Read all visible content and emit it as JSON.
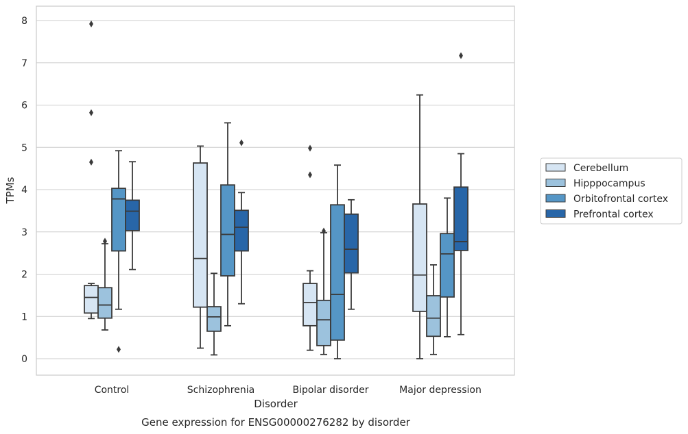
{
  "chart_data": {
    "type": "box",
    "caption": "Gene expression for ENSG00000276282 by disorder",
    "xlabel": "Disorder",
    "ylabel": "TPMs",
    "ylim": [
      -0.4,
      8.35
    ],
    "yticks": [
      0,
      1,
      2,
      3,
      4,
      5,
      6,
      7,
      8
    ],
    "ytick_labels": [
      "0",
      "1",
      "2",
      "3",
      "4",
      "5",
      "6",
      "7",
      "8"
    ],
    "grid": "horizontal",
    "legend_position": "right",
    "categories": [
      "Control",
      "Schizophrenia",
      "Bipolar disorder",
      "Major depression"
    ],
    "series": [
      {
        "name": "Cerebellum",
        "color": "#d6e5f3",
        "boxes": [
          {
            "whisker_low": 0.95,
            "q1": 1.08,
            "median": 1.45,
            "q3": 1.73,
            "whisker_high": 1.78,
            "outliers": [
              7.92,
              5.82,
              4.65
            ]
          },
          {
            "whisker_low": 0.25,
            "q1": 1.22,
            "median": 2.37,
            "q3": 4.63,
            "whisker_high": 5.03,
            "outliers": []
          },
          {
            "whisker_low": 0.2,
            "q1": 0.78,
            "median": 1.33,
            "q3": 1.78,
            "whisker_high": 2.08,
            "outliers": [
              4.98,
              4.35
            ]
          },
          {
            "whisker_low": 0.0,
            "q1": 1.12,
            "median": 1.98,
            "q3": 3.66,
            "whisker_high": 6.24,
            "outliers": []
          }
        ]
      },
      {
        "name": "Hipppocampus",
        "color": "#9cc2dd",
        "boxes": [
          {
            "whisker_low": 0.68,
            "q1": 0.96,
            "median": 1.27,
            "q3": 1.68,
            "whisker_high": 2.72,
            "outliers": [
              2.78
            ]
          },
          {
            "whisker_low": 0.09,
            "q1": 0.65,
            "median": 0.99,
            "q3": 1.23,
            "whisker_high": 2.02,
            "outliers": []
          },
          {
            "whisker_low": 0.1,
            "q1": 0.31,
            "median": 0.92,
            "q3": 1.38,
            "whisker_high": 2.98,
            "outliers": [
              3.02
            ]
          },
          {
            "whisker_low": 0.1,
            "q1": 0.53,
            "median": 0.96,
            "q3": 1.49,
            "whisker_high": 2.22,
            "outliers": []
          }
        ]
      },
      {
        "name": "Orbitofrontal cortex",
        "color": "#5596c6",
        "boxes": [
          {
            "whisker_low": 1.17,
            "q1": 2.55,
            "median": 3.78,
            "q3": 4.03,
            "whisker_high": 4.92,
            "outliers": [
              0.22
            ]
          },
          {
            "whisker_low": 0.78,
            "q1": 1.96,
            "median": 2.94,
            "q3": 4.11,
            "whisker_high": 5.58,
            "outliers": []
          },
          {
            "whisker_low": 0.0,
            "q1": 0.44,
            "median": 1.52,
            "q3": 3.64,
            "whisker_high": 4.58,
            "outliers": []
          },
          {
            "whisker_low": 0.52,
            "q1": 1.46,
            "median": 2.48,
            "q3": 2.96,
            "whisker_high": 3.8,
            "outliers": []
          }
        ]
      },
      {
        "name": "Prefrontal cortex",
        "color": "#2866a8",
        "boxes": [
          {
            "whisker_low": 2.11,
            "q1": 3.03,
            "median": 3.49,
            "q3": 3.75,
            "whisker_high": 4.66,
            "outliers": []
          },
          {
            "whisker_low": 1.3,
            "q1": 2.55,
            "median": 3.11,
            "q3": 3.51,
            "whisker_high": 3.93,
            "outliers": [
              5.11
            ]
          },
          {
            "whisker_low": 1.17,
            "q1": 2.03,
            "median": 2.59,
            "q3": 3.42,
            "whisker_high": 3.76,
            "outliers": []
          },
          {
            "whisker_low": 0.57,
            "q1": 2.56,
            "median": 2.77,
            "q3": 4.06,
            "whisker_high": 4.85,
            "outliers": [
              7.17
            ]
          }
        ]
      }
    ]
  }
}
